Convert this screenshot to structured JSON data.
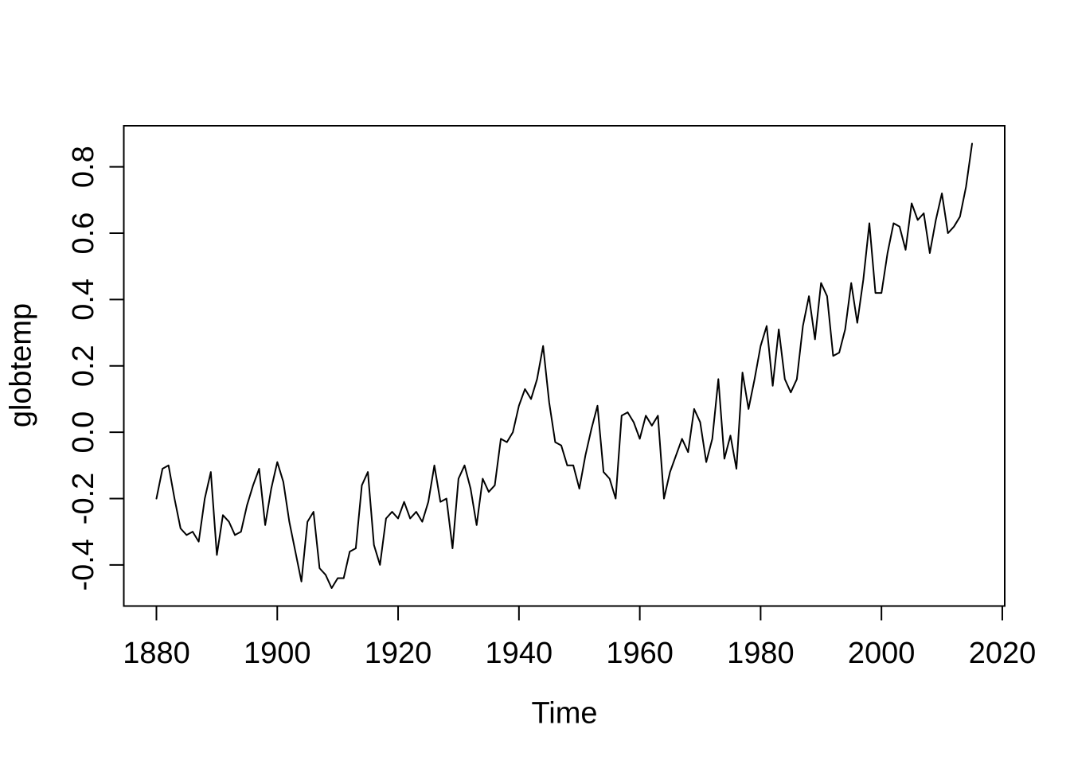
{
  "figure": {
    "background_color": "#ffffff",
    "line_color": "#000000",
    "text_color": "#000000"
  },
  "chart_data": {
    "type": "line",
    "title": "",
    "xlabel": "Time",
    "ylabel": "globtemp",
    "series_name": "globtemp",
    "grid": false,
    "legend_position": "none",
    "xlim": [
      1874.6,
      2020.4
    ],
    "ylim": [
      -0.524,
      0.924
    ],
    "x_ticks": [
      1880,
      1900,
      1920,
      1940,
      1960,
      1980,
      2000,
      2020
    ],
    "x_tick_labels": [
      "1880",
      "1900",
      "1920",
      "1940",
      "1960",
      "1980",
      "2000",
      "2020"
    ],
    "y_ticks": [
      -0.4,
      -0.2,
      0.0,
      0.2,
      0.4,
      0.6,
      0.8
    ],
    "y_tick_labels": [
      "-0.4",
      "-0.2",
      "0.0",
      "0.2",
      "0.4",
      "0.6",
      "0.8"
    ],
    "x": [
      1880,
      1881,
      1882,
      1883,
      1884,
      1885,
      1886,
      1887,
      1888,
      1889,
      1890,
      1891,
      1892,
      1893,
      1894,
      1895,
      1896,
      1897,
      1898,
      1899,
      1900,
      1901,
      1902,
      1903,
      1904,
      1905,
      1906,
      1907,
      1908,
      1909,
      1910,
      1911,
      1912,
      1913,
      1914,
      1915,
      1916,
      1917,
      1918,
      1919,
      1920,
      1921,
      1922,
      1923,
      1924,
      1925,
      1926,
      1927,
      1928,
      1929,
      1930,
      1931,
      1932,
      1933,
      1934,
      1935,
      1936,
      1937,
      1938,
      1939,
      1940,
      1941,
      1942,
      1943,
      1944,
      1945,
      1946,
      1947,
      1948,
      1949,
      1950,
      1951,
      1952,
      1953,
      1954,
      1955,
      1956,
      1957,
      1958,
      1959,
      1960,
      1961,
      1962,
      1963,
      1964,
      1965,
      1966,
      1967,
      1968,
      1969,
      1970,
      1971,
      1972,
      1973,
      1974,
      1975,
      1976,
      1977,
      1978,
      1979,
      1980,
      1981,
      1982,
      1983,
      1984,
      1985,
      1986,
      1987,
      1988,
      1989,
      1990,
      1991,
      1992,
      1993,
      1994,
      1995,
      1996,
      1997,
      1998,
      1999,
      2000,
      2001,
      2002,
      2003,
      2004,
      2005,
      2006,
      2007,
      2008,
      2009,
      2010,
      2011,
      2012,
      2013,
      2014,
      2015
    ],
    "values": [
      -0.2,
      -0.11,
      -0.1,
      -0.2,
      -0.29,
      -0.31,
      -0.3,
      -0.33,
      -0.2,
      -0.12,
      -0.37,
      -0.25,
      -0.27,
      -0.31,
      -0.3,
      -0.22,
      -0.16,
      -0.11,
      -0.28,
      -0.17,
      -0.09,
      -0.15,
      -0.27,
      -0.36,
      -0.45,
      -0.27,
      -0.24,
      -0.41,
      -0.43,
      -0.47,
      -0.44,
      -0.44,
      -0.36,
      -0.35,
      -0.16,
      -0.12,
      -0.34,
      -0.4,
      -0.26,
      -0.24,
      -0.26,
      -0.21,
      -0.26,
      -0.24,
      -0.27,
      -0.21,
      -0.1,
      -0.21,
      -0.2,
      -0.35,
      -0.14,
      -0.1,
      -0.17,
      -0.28,
      -0.14,
      -0.18,
      -0.16,
      -0.02,
      -0.03,
      0.0,
      0.08,
      0.13,
      0.1,
      0.16,
      0.26,
      0.09,
      -0.03,
      -0.04,
      -0.1,
      -0.1,
      -0.17,
      -0.07,
      0.01,
      0.08,
      -0.12,
      -0.14,
      -0.2,
      0.05,
      0.06,
      0.03,
      -0.02,
      0.05,
      0.02,
      0.05,
      -0.2,
      -0.12,
      -0.07,
      -0.02,
      -0.06,
      0.07,
      0.03,
      -0.09,
      -0.02,
      0.16,
      -0.08,
      -0.01,
      -0.11,
      0.18,
      0.07,
      0.16,
      0.26,
      0.32,
      0.14,
      0.31,
      0.16,
      0.12,
      0.16,
      0.32,
      0.41,
      0.28,
      0.45,
      0.41,
      0.23,
      0.24,
      0.31,
      0.45,
      0.33,
      0.46,
      0.63,
      0.42,
      0.42,
      0.54,
      0.63,
      0.62,
      0.55,
      0.69,
      0.64,
      0.66,
      0.54,
      0.64,
      0.72,
      0.6,
      0.62,
      0.65,
      0.74,
      0.87
    ]
  }
}
